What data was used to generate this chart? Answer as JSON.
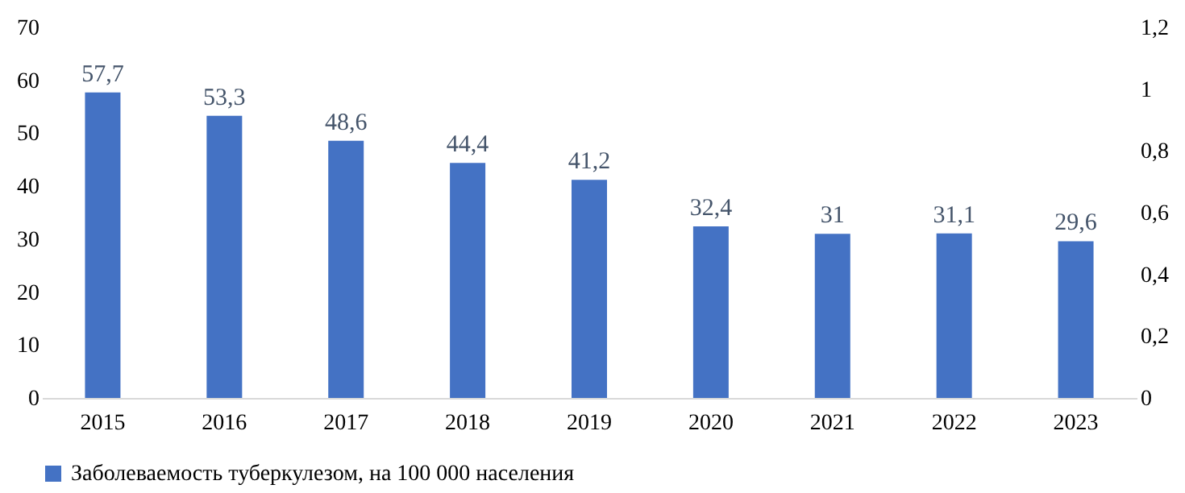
{
  "chart_data": {
    "type": "bar",
    "categories": [
      "2015",
      "2016",
      "2017",
      "2018",
      "2019",
      "2020",
      "2021",
      "2022",
      "2023"
    ],
    "series": [
      {
        "name": "Заболеваемость туберкулезом, на 100 000 населения",
        "color": "#4472c4",
        "values": [
          57.7,
          53.3,
          48.6,
          44.4,
          41.2,
          32.4,
          31,
          31.1,
          29.6
        ],
        "value_labels": [
          "57,7",
          "53,3",
          "48,6",
          "44,4",
          "41,2",
          "32,4",
          "31",
          "31,1",
          "29,6"
        ]
      }
    ],
    "ylim": [
      0,
      70
    ],
    "yticks": [
      0,
      10,
      20,
      30,
      40,
      50,
      60,
      70
    ],
    "y2lim": [
      0,
      1.2
    ],
    "y2ticks": [
      0,
      {
        "value": 0.2,
        "label": "0,2"
      },
      {
        "value": 0.4,
        "label": "0,4"
      },
      {
        "value": 0.6,
        "label": "0,6"
      },
      {
        "value": 0.8,
        "label": "0,8"
      },
      1,
      {
        "value": 1.2,
        "label": "1,2"
      }
    ],
    "grid": false,
    "legend": "bottom"
  }
}
